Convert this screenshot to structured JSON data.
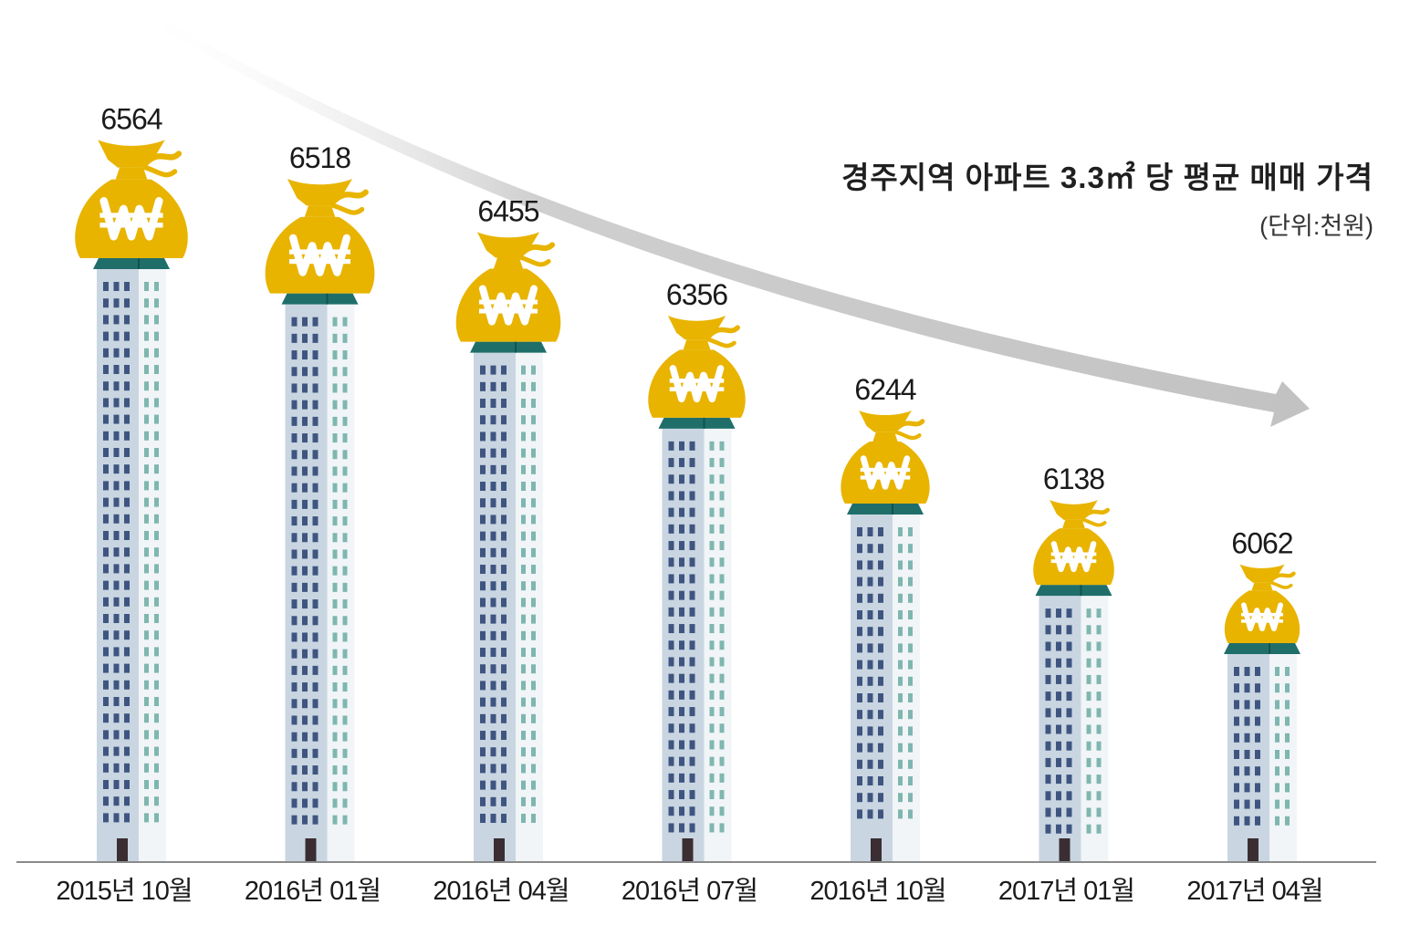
{
  "chart_data": {
    "type": "bar",
    "title": "경주지역 아파트 3.3㎡ 당 평균 매매 가격",
    "unit": "(단위:천원)",
    "categories": [
      "2015년 10월",
      "2016년 01월",
      "2016년 04월",
      "2016년 07월",
      "2016년 10월",
      "2017년 01월",
      "2017년 04월"
    ],
    "values": [
      6564,
      6518,
      6455,
      6356,
      6244,
      6138,
      6062
    ],
    "trend": "decreasing",
    "grid": false,
    "legend": "none"
  },
  "colors": {
    "bag": "#e8b400",
    "roof": "#1f6e6a",
    "building_left": "#c9d6e2",
    "building_right": "#f1f5f7",
    "window_left": "#3f5580",
    "window_right": "#7fb6b0",
    "door": "#3a2e33",
    "arrow": "#c9c9c9",
    "axis": "#8a8a8a"
  },
  "icons": {
    "marker": "money-bag-won-icon",
    "bar": "apartment-building-icon",
    "trend": "trend-arrow-icon"
  }
}
